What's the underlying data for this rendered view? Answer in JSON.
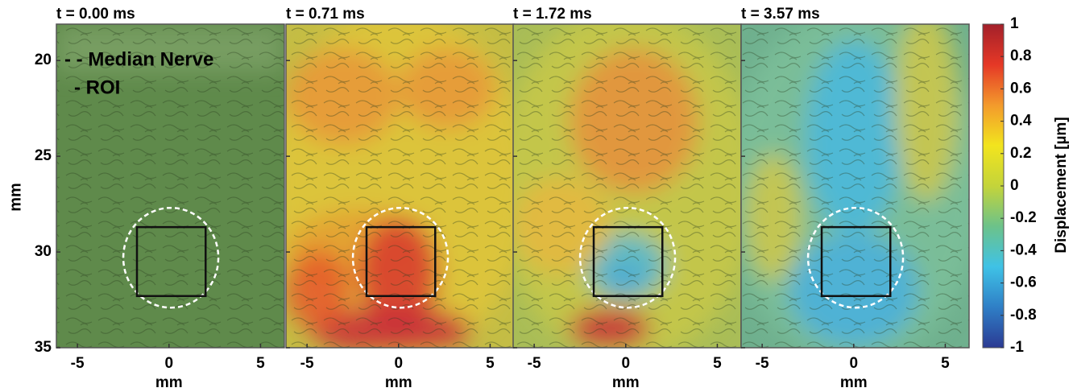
{
  "chart_data": {
    "type": "image-grid",
    "ylabel": "mm",
    "ylim": [
      35,
      18.1
    ],
    "yticks": [
      20,
      25,
      30,
      35
    ],
    "panels": [
      {
        "title": "t = 0.00 ms",
        "xlabel": "mm",
        "xlim": [
          -6.15,
          6.3
        ],
        "xticks": [
          -5,
          0,
          5
        ]
      },
      {
        "title": "t = 0.71 ms",
        "xlabel": "mm",
        "xlim": [
          -6.15,
          6.3
        ],
        "xticks": [
          -5,
          0,
          5
        ]
      },
      {
        "title": "t = 1.72 ms",
        "xlabel": "mm",
        "xlim": [
          -6.15,
          6.3
        ],
        "xticks": [
          -5,
          0,
          5
        ]
      },
      {
        "title": "t = 3.57 ms",
        "xlabel": "mm",
        "xlim": [
          -6.15,
          6.3
        ],
        "xticks": [
          -5,
          0,
          5
        ]
      }
    ],
    "legend": [
      {
        "label": "- - Median Nerve",
        "color": "#ffffff"
      },
      {
        "label": "- ROI",
        "color": "#000000"
      }
    ],
    "colorbar": {
      "label": "Displacement [µm]",
      "ylim": [
        -1,
        1
      ],
      "yticks": [
        1,
        0.8,
        0.6,
        0.4,
        0.2,
        0,
        -0.2,
        -0.4,
        -0.6,
        -0.8,
        -1
      ],
      "colors": [
        "#2b3a93",
        "#2f7fc6",
        "#3fc2e6",
        "#6cc28a",
        "#c4d43a",
        "#f2e41e",
        "#f39a2c",
        "#e53826",
        "#a3202a"
      ]
    }
  }
}
